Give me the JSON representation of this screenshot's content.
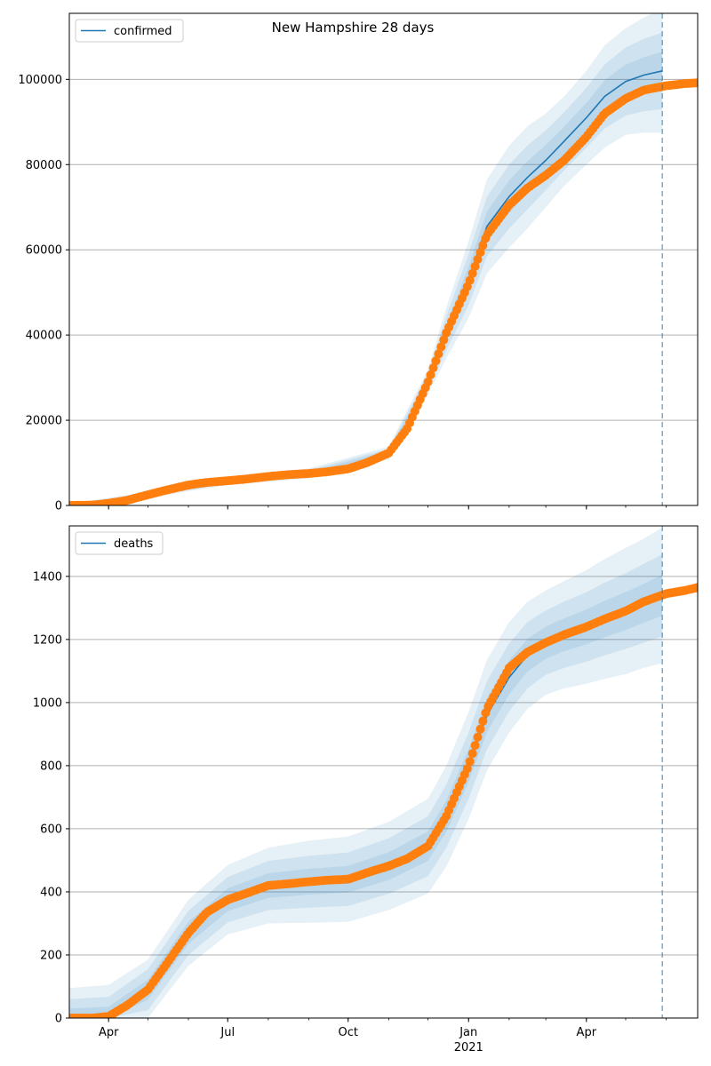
{
  "suptitle": "New Hampshire 28 days",
  "colors": {
    "model_line": "#1f77b4",
    "observed_points": "#ff7f0e",
    "band": "#1f77b4",
    "grid": "#b0b0b0",
    "forecast_marker": "#1f77b4"
  },
  "x_ticks_major": [
    {
      "date": "2020-04-01",
      "label": "Apr"
    },
    {
      "date": "2020-07-01",
      "label": "Jul"
    },
    {
      "date": "2020-10-01",
      "label": "Oct"
    },
    {
      "date": "2021-01-01",
      "label": "Jan"
    },
    {
      "date": "2021-04-01",
      "label": "Apr"
    }
  ],
  "x_year_label": {
    "date": "2021-01-01",
    "label": "2021"
  },
  "chart_data": [
    {
      "type": "line",
      "name": "confirmed",
      "legend": [
        "confirmed"
      ],
      "legend_loc": "upper left",
      "grid_y": true,
      "x_range": [
        "2020-03-02",
        "2021-06-25"
      ],
      "forecast_date": "2021-05-29",
      "ylim": [
        0,
        115500
      ],
      "yticks": [
        0,
        20000,
        40000,
        60000,
        80000,
        100000
      ],
      "ytick_labels": [
        "0",
        "20000",
        "40000",
        "60000",
        "80000",
        "100000"
      ],
      "observed": {
        "x": [
          "2020-03-02",
          "2020-03-20",
          "2020-04-01",
          "2020-04-15",
          "2020-05-01",
          "2020-05-15",
          "2020-06-01",
          "2020-06-15",
          "2020-07-01",
          "2020-07-15",
          "2020-08-01",
          "2020-08-15",
          "2020-09-01",
          "2020-09-15",
          "2020-10-01",
          "2020-10-15",
          "2020-11-01",
          "2020-11-15",
          "2020-12-01",
          "2020-12-15",
          "2021-01-01",
          "2021-01-15",
          "2021-02-01",
          "2021-02-15",
          "2021-03-01",
          "2021-03-15",
          "2021-04-01",
          "2021-04-15",
          "2021-05-01",
          "2021-05-15",
          "2021-06-01",
          "2021-06-15",
          "2021-06-25"
        ],
        "y": [
          0,
          100,
          500,
          1200,
          2500,
          3600,
          4800,
          5400,
          5800,
          6200,
          6800,
          7200,
          7500,
          7900,
          8600,
          10000,
          12300,
          18000,
          29000,
          40500,
          52000,
          63500,
          70500,
          74500,
          77500,
          81000,
          86500,
          92000,
          95500,
          97500,
          98500,
          99000,
          99200
        ]
      },
      "model": {
        "x": [
          "2020-12-15",
          "2021-01-01",
          "2021-01-15",
          "2021-02-01",
          "2021-02-15",
          "2021-03-01",
          "2021-03-15",
          "2021-04-01",
          "2021-04-15",
          "2021-05-01",
          "2021-05-15",
          "2021-05-29"
        ],
        "y": [
          40500,
          53000,
          65500,
          72500,
          77000,
          81000,
          85500,
          91000,
          96000,
          99500,
          101000,
          102000
        ]
      },
      "bands": {
        "x": [
          "2020-03-02",
          "2020-05-01",
          "2020-07-01",
          "2020-09-01",
          "2020-11-01",
          "2020-12-01",
          "2020-12-15",
          "2021-01-01",
          "2021-01-15",
          "2021-02-01",
          "2021-02-15",
          "2021-03-01",
          "2021-03-15",
          "2021-04-01",
          "2021-04-15",
          "2021-05-01",
          "2021-05-15",
          "2021-05-29"
        ],
        "center": [
          0,
          2500,
          5800,
          7500,
          12300,
          29000,
          40500,
          53000,
          65500,
          72500,
          77000,
          81000,
          85500,
          91000,
          96000,
          99500,
          101000,
          102000
        ],
        "outer": [
          400,
          700,
          1000,
          1200,
          1500,
          3000,
          6000,
          9000,
          11000,
          12000,
          12000,
          11000,
          10500,
          11000,
          12000,
          12500,
          13500,
          14500
        ],
        "mid": [
          250,
          450,
          650,
          800,
          1000,
          2000,
          4000,
          6000,
          7000,
          7500,
          7500,
          7000,
          6800,
          7000,
          7500,
          8000,
          8500,
          9000
        ],
        "inner": [
          120,
          220,
          320,
          400,
          500,
          1000,
          2000,
          3000,
          3500,
          3800,
          3800,
          3600,
          3400,
          3500,
          3800,
          4000,
          4200,
          4500
        ]
      }
    },
    {
      "type": "line",
      "name": "deaths",
      "legend": [
        "deaths"
      ],
      "legend_loc": "upper left",
      "grid_y": true,
      "x_range": [
        "2020-03-02",
        "2021-06-25"
      ],
      "forecast_date": "2021-05-29",
      "ylim": [
        0,
        1560
      ],
      "yticks": [
        0,
        200,
        400,
        600,
        800,
        1000,
        1200,
        1400
      ],
      "ytick_labels": [
        "0",
        "200",
        "400",
        "600",
        "800",
        "1000",
        "1200",
        "1400"
      ],
      "observed": {
        "x": [
          "2020-03-02",
          "2020-03-20",
          "2020-04-01",
          "2020-04-15",
          "2020-05-01",
          "2020-05-15",
          "2020-06-01",
          "2020-06-15",
          "2020-07-01",
          "2020-07-15",
          "2020-08-01",
          "2020-08-15",
          "2020-09-01",
          "2020-09-15",
          "2020-10-01",
          "2020-10-15",
          "2020-11-01",
          "2020-11-15",
          "2020-12-01",
          "2020-12-15",
          "2021-01-01",
          "2021-01-15",
          "2021-02-01",
          "2021-02-15",
          "2021-03-01",
          "2021-03-15",
          "2021-04-01",
          "2021-04-15",
          "2021-05-01",
          "2021-05-15",
          "2021-06-01",
          "2021-06-15",
          "2021-06-25"
        ],
        "y": [
          0,
          0,
          5,
          40,
          90,
          170,
          270,
          335,
          375,
          395,
          420,
          425,
          432,
          437,
          440,
          460,
          482,
          505,
          545,
          640,
          800,
          980,
          1110,
          1160,
          1190,
          1215,
          1240,
          1265,
          1290,
          1320,
          1345,
          1355,
          1365
        ]
      },
      "model": {
        "x": [
          "2020-09-15",
          "2020-10-01",
          "2020-10-15",
          "2020-11-01",
          "2020-11-15",
          "2020-12-01",
          "2020-12-15",
          "2021-01-01",
          "2021-01-15",
          "2021-02-01",
          "2021-02-15",
          "2021-03-01",
          "2021-03-15",
          "2021-04-01",
          "2021-04-15",
          "2021-05-01",
          "2021-05-15",
          "2021-05-29"
        ],
        "y": [
          440,
          445,
          458,
          480,
          505,
          545,
          640,
          800,
          960,
          1080,
          1150,
          1190,
          1215,
          1240,
          1265,
          1290,
          1315,
          1340
        ]
      },
      "bands": {
        "x": [
          "2020-03-02",
          "2020-04-01",
          "2020-05-01",
          "2020-06-01",
          "2020-07-01",
          "2020-08-01",
          "2020-09-01",
          "2020-10-01",
          "2020-11-01",
          "2020-12-01",
          "2020-12-15",
          "2021-01-01",
          "2021-01-15",
          "2021-02-01",
          "2021-02-15",
          "2021-03-01",
          "2021-03-15",
          "2021-04-01",
          "2021-04-15",
          "2021-05-01",
          "2021-05-15",
          "2021-05-29"
        ],
        "center": [
          0,
          5,
          90,
          270,
          375,
          420,
          432,
          440,
          482,
          545,
          640,
          800,
          960,
          1080,
          1150,
          1190,
          1215,
          1240,
          1265,
          1290,
          1315,
          1340
        ],
        "outer": [
          95,
          100,
          95,
          105,
          110,
          120,
          130,
          135,
          140,
          150,
          160,
          170,
          175,
          175,
          170,
          165,
          170,
          180,
          190,
          200,
          205,
          215
        ],
        "mid": [
          60,
          62,
          65,
          70,
          72,
          78,
          82,
          85,
          88,
          95,
          100,
          105,
          108,
          108,
          105,
          102,
          105,
          110,
          115,
          120,
          125,
          130
        ],
        "inner": [
          30,
          31,
          32,
          35,
          36,
          39,
          41,
          42,
          44,
          47,
          50,
          52,
          54,
          54,
          52,
          51,
          52,
          55,
          58,
          60,
          62,
          65
        ]
      }
    }
  ]
}
